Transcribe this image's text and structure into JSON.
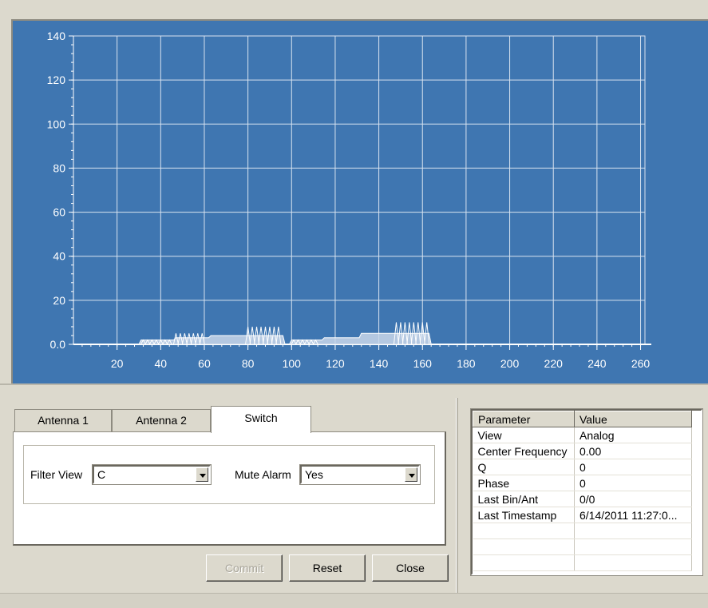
{
  "chart": {
    "title": "",
    "colors": {
      "background": "#3f76b1",
      "grid": "#d8e3f0",
      "trace": "#ffffff",
      "axis": "#ffffff"
    }
  },
  "chart_data": {
    "type": "area",
    "title": "",
    "xlabel": "",
    "ylabel": "",
    "xlim": [
      0,
      262
    ],
    "ylim": [
      0,
      140
    ],
    "grid": true,
    "x_ticks": [
      "20",
      "40",
      "60",
      "80",
      "100",
      "120",
      "140",
      "160",
      "180",
      "200",
      "220",
      "240",
      "260"
    ],
    "y_ticks": [
      "0.0",
      "20",
      "40",
      "60",
      "80",
      "100",
      "120",
      "140"
    ],
    "series": [
      {
        "values": [
          [
            30,
            0
          ],
          [
            31,
            2
          ],
          [
            46,
            2
          ],
          [
            47,
            3
          ],
          [
            62,
            3
          ],
          [
            63,
            4
          ],
          [
            96,
            4
          ],
          [
            97,
            0
          ],
          [
            99,
            0
          ],
          [
            100,
            2
          ],
          [
            114,
            2
          ],
          [
            115,
            3
          ],
          [
            131,
            3
          ],
          [
            132,
            5
          ],
          [
            163,
            5
          ],
          [
            164,
            0
          ]
        ],
        "spikes": [
          [
            32,
            2
          ],
          [
            34,
            2
          ],
          [
            36,
            2
          ],
          [
            38,
            2
          ],
          [
            40,
            2
          ],
          [
            42,
            2
          ],
          [
            44,
            2
          ],
          [
            47,
            5
          ],
          [
            49,
            5
          ],
          [
            51,
            5
          ],
          [
            53,
            5
          ],
          [
            55,
            5
          ],
          [
            57,
            5
          ],
          [
            59,
            5
          ],
          [
            80,
            8
          ],
          [
            82,
            8
          ],
          [
            84,
            8
          ],
          [
            86,
            8
          ],
          [
            88,
            8
          ],
          [
            90,
            8
          ],
          [
            92,
            8
          ],
          [
            94,
            8
          ],
          [
            101,
            2
          ],
          [
            103,
            2
          ],
          [
            105,
            2
          ],
          [
            107,
            2
          ],
          [
            109,
            2
          ],
          [
            111,
            2
          ],
          [
            148,
            10
          ],
          [
            150,
            10
          ],
          [
            152,
            10
          ],
          [
            154,
            10
          ],
          [
            156,
            10
          ],
          [
            158,
            10
          ],
          [
            160,
            10
          ],
          [
            162,
            10
          ]
        ]
      }
    ]
  },
  "tabs": [
    {
      "label": "Antenna 1",
      "active": false
    },
    {
      "label": "Antenna 2",
      "active": false
    },
    {
      "label": "Switch",
      "active": true
    }
  ],
  "form": {
    "filter_view_label": "Filter View",
    "filter_view_value": "C",
    "mute_alarm_label": "Mute Alarm",
    "mute_alarm_value": "Yes"
  },
  "buttons": {
    "commit": "Commit",
    "reset": "Reset",
    "close": "Close"
  },
  "table": {
    "headers": [
      "Parameter",
      "Value"
    ],
    "rows": [
      [
        "View",
        "Analog"
      ],
      [
        "Center Frequency",
        "0.00"
      ],
      [
        "Q",
        "0"
      ],
      [
        "Phase",
        "0"
      ],
      [
        "Last Bin/Ant",
        "0/0"
      ],
      [
        "Last Timestamp",
        "6/14/2011 11:27:0..."
      ]
    ]
  }
}
